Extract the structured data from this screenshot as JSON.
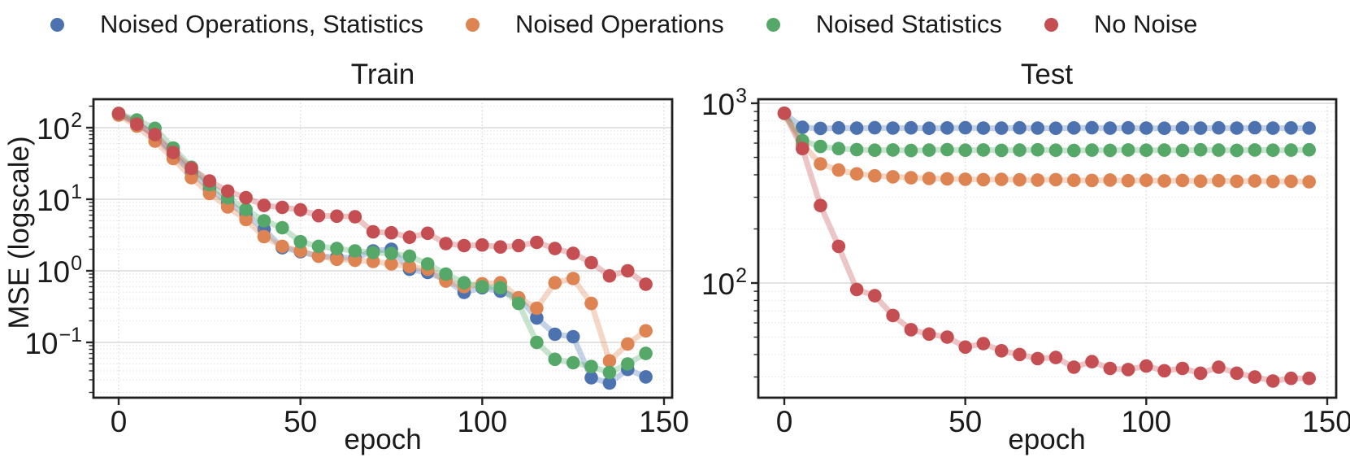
{
  "legend": {
    "items": [
      {
        "label": "Noised Operations, Statistics",
        "color": "#4C72B0"
      },
      {
        "label": "Noised Operations",
        "color": "#DD8452"
      },
      {
        "label": "Noised Statistics",
        "color": "#55A868"
      },
      {
        "label": "No Noise",
        "color": "#C44E52"
      }
    ]
  },
  "chart_data": [
    {
      "type": "line",
      "title": "Train",
      "xlabel": "epoch",
      "ylabel": "MSE (logscale)",
      "yscale": "log",
      "xlim": [
        -7,
        152
      ],
      "ylim": [
        0.017,
        250
      ],
      "grid": true,
      "x_ticks": [
        0,
        50,
        100,
        150
      ],
      "y_tick_exponents": [
        2,
        1,
        0,
        -1
      ],
      "y_tick_labels": [
        "10^2",
        "10^1",
        "10^0",
        "10^-1"
      ],
      "x": [
        0,
        5,
        10,
        15,
        20,
        25,
        30,
        35,
        40,
        45,
        50,
        55,
        60,
        65,
        70,
        75,
        80,
        85,
        90,
        95,
        100,
        105,
        110,
        115,
        120,
        125,
        130,
        135,
        140,
        145
      ],
      "series": [
        {
          "name": "Noised Operations, Statistics",
          "color": "#4C72B0",
          "values": [
            155,
            120,
            75,
            42,
            24,
            14,
            9,
            6.2,
            3.8,
            2.1,
            1.85,
            1.6,
            1.55,
            1.5,
            1.9,
            2.0,
            1.05,
            0.95,
            0.75,
            0.5,
            0.58,
            0.52,
            0.42,
            0.22,
            0.13,
            0.12,
            0.032,
            0.027,
            0.042,
            0.033
          ]
        },
        {
          "name": "Noised Operations",
          "color": "#DD8452",
          "values": [
            150,
            105,
            65,
            37,
            20,
            12,
            7.8,
            5.2,
            3.0,
            2.2,
            1.9,
            1.6,
            1.45,
            1.4,
            1.35,
            1.25,
            1.15,
            1.05,
            0.72,
            0.6,
            0.66,
            0.68,
            0.42,
            0.3,
            0.68,
            0.78,
            0.35,
            0.055,
            0.095,
            0.145
          ]
        },
        {
          "name": "Noised Statistics",
          "color": "#55A868",
          "values": [
            158,
            128,
            98,
            52,
            28,
            16,
            10.5,
            7.2,
            5.0,
            4.0,
            2.55,
            2.2,
            2.05,
            1.9,
            1.8,
            1.75,
            1.6,
            1.25,
            0.9,
            0.68,
            0.6,
            0.58,
            0.35,
            0.1,
            0.058,
            0.052,
            0.046,
            0.038,
            0.05,
            0.07
          ]
        },
        {
          "name": "No Noise",
          "color": "#C44E52",
          "values": [
            158,
            112,
            80,
            45,
            27,
            18,
            13,
            10.5,
            8.2,
            7.7,
            7.1,
            5.9,
            5.8,
            5.7,
            3.5,
            3.4,
            2.95,
            3.35,
            2.4,
            2.25,
            2.3,
            2.15,
            2.25,
            2.5,
            2.05,
            1.75,
            1.3,
            0.85,
            1.0,
            0.65
          ]
        }
      ]
    },
    {
      "type": "line",
      "title": "Test",
      "xlabel": "epoch",
      "ylabel": "",
      "yscale": "log",
      "xlim": [
        -7,
        152
      ],
      "ylim": [
        23,
        1050
      ],
      "grid": true,
      "x_ticks": [
        0,
        50,
        100,
        150
      ],
      "y_tick_exponents": [
        3,
        2
      ],
      "y_tick_labels": [
        "10^3",
        "10^2"
      ],
      "x": [
        0,
        5,
        10,
        15,
        20,
        25,
        30,
        35,
        40,
        45,
        50,
        55,
        60,
        65,
        70,
        75,
        80,
        85,
        90,
        95,
        100,
        105,
        110,
        115,
        120,
        125,
        130,
        135,
        140,
        145
      ],
      "series": [
        {
          "name": "Noised Operations, Statistics",
          "color": "#4C72B0",
          "values": [
            880,
            735,
            725,
            730,
            727,
            731,
            728,
            730,
            726,
            729,
            731,
            728,
            727,
            730,
            728,
            726,
            729,
            731,
            727,
            730,
            728,
            726,
            729,
            727,
            730,
            728,
            731,
            727,
            729,
            728
          ]
        },
        {
          "name": "Noised Operations",
          "color": "#DD8452",
          "values": [
            880,
            590,
            460,
            425,
            405,
            395,
            390,
            385,
            382,
            380,
            378,
            376,
            377,
            375,
            374,
            376,
            373,
            372,
            374,
            371,
            373,
            370,
            372,
            369,
            371,
            368,
            370,
            367,
            368,
            366
          ]
        },
        {
          "name": "Noised Statistics",
          "color": "#55A868",
          "values": [
            880,
            620,
            575,
            560,
            552,
            548,
            550,
            546,
            549,
            552,
            548,
            550,
            547,
            549,
            551,
            548,
            546,
            549,
            547,
            550,
            548,
            549,
            547,
            551,
            549,
            547,
            550,
            548,
            549,
            551
          ]
        },
        {
          "name": "No Noise",
          "color": "#C44E52",
          "values": [
            880,
            560,
            270,
            160,
            92,
            85,
            66,
            55,
            52,
            50,
            44,
            46,
            42,
            40,
            38,
            38.5,
            34,
            36.5,
            33.5,
            33,
            34.5,
            32.5,
            33.5,
            31.5,
            34,
            31.5,
            30,
            28.5,
            29.5,
            29.5
          ]
        }
      ]
    }
  ]
}
